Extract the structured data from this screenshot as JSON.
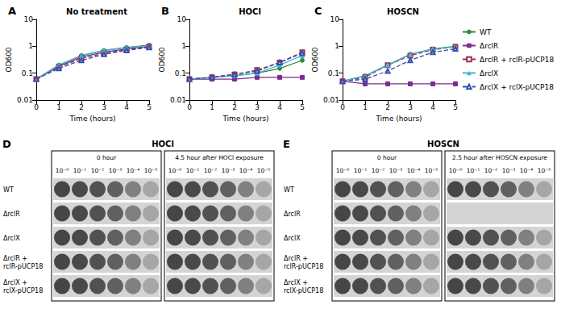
{
  "chart_data": [
    {
      "type": "line",
      "panel_label": "A",
      "title": "No treatment",
      "x_label": "Time (hours)",
      "y_label": "OD600",
      "x": [
        0,
        1,
        2,
        3,
        4,
        5
      ],
      "xlim": [
        0,
        5
      ],
      "xticks": [
        0,
        1,
        2,
        3,
        4,
        5
      ],
      "ylim": [
        0.01,
        10
      ],
      "yticks": [
        0.01,
        0.1,
        1,
        10
      ],
      "log": "y",
      "grid": false,
      "series": [
        {
          "name": "WT",
          "color": "#2e8b3a",
          "marker": "circle",
          "line_style": "solid",
          "values": [
            0.06,
            0.2,
            0.45,
            0.7,
            0.9,
            1.1
          ]
        },
        {
          "name": "ΔrclR",
          "color": "#7b2d8e",
          "marker": "square",
          "line_style": "solid",
          "values": [
            0.06,
            0.18,
            0.4,
            0.6,
            0.8,
            1.0
          ]
        },
        {
          "name": "ΔrclR + rclR-pUCP18",
          "color": "#9b2a55",
          "marker": "open_square",
          "line_style": "dashed",
          "values": [
            0.06,
            0.17,
            0.35,
            0.55,
            0.75,
            0.95
          ]
        },
        {
          "name": "ΔrclX",
          "color": "#3fb8d8",
          "marker": "triangle",
          "line_style": "solid",
          "values": [
            0.06,
            0.2,
            0.45,
            0.7,
            0.9,
            1.05
          ]
        },
        {
          "name": "ΔrclX + rclX-pUCP18",
          "color": "#2f4fb0",
          "marker": "open_triangle",
          "line_style": "dashed",
          "values": [
            0.06,
            0.15,
            0.3,
            0.5,
            0.7,
            0.9
          ]
        }
      ]
    },
    {
      "type": "line",
      "panel_label": "B",
      "title": "HOCl",
      "x_label": "Time (hours)",
      "y_label": "OD600",
      "x": [
        0,
        1,
        2,
        3,
        4,
        5
      ],
      "xlim": [
        0,
        5
      ],
      "xticks": [
        0,
        1,
        2,
        3,
        4,
        5
      ],
      "ylim": [
        0.01,
        10
      ],
      "yticks": [
        0.01,
        0.1,
        1,
        10
      ],
      "log": "y",
      "grid": false,
      "series": [
        {
          "name": "WT",
          "color": "#2e8b3a",
          "marker": "circle",
          "line_style": "solid",
          "values": [
            0.06,
            0.07,
            0.08,
            0.1,
            0.15,
            0.3
          ]
        },
        {
          "name": "ΔrclR",
          "color": "#7b2d8e",
          "marker": "square",
          "line_style": "solid",
          "values": [
            0.06,
            0.06,
            0.06,
            0.07,
            0.07,
            0.07
          ]
        },
        {
          "name": "ΔrclR + rclR-pUCP18",
          "color": "#9b2a55",
          "marker": "open_square",
          "line_style": "dashed",
          "values": [
            0.06,
            0.07,
            0.09,
            0.13,
            0.25,
            0.6
          ]
        },
        {
          "name": "ΔrclX",
          "color": "#3fb8d8",
          "marker": "triangle",
          "line_style": "solid",
          "values": [
            0.06,
            0.07,
            0.08,
            0.1,
            0.2,
            0.45
          ]
        },
        {
          "name": "ΔrclX + rclX-pUCP18",
          "color": "#2f4fb0",
          "marker": "open_triangle",
          "line_style": "dashed",
          "values": [
            0.06,
            0.07,
            0.09,
            0.12,
            0.25,
            0.55
          ]
        }
      ]
    },
    {
      "type": "line",
      "panel_label": "C",
      "title": "HOSCN",
      "x_label": "Time (hours)",
      "y_label": "OD600",
      "x": [
        0,
        1,
        2,
        3,
        4,
        5
      ],
      "xlim": [
        0,
        5
      ],
      "xticks": [
        0,
        1,
        2,
        3,
        4,
        5
      ],
      "ylim": [
        0.01,
        10
      ],
      "yticks": [
        0.01,
        0.1,
        1,
        10
      ],
      "log": "y",
      "grid": false,
      "legend": "right",
      "series": [
        {
          "name": "WT",
          "color": "#2e8b3a",
          "marker": "circle",
          "line_style": "solid",
          "values": [
            0.05,
            0.08,
            0.2,
            0.5,
            0.8,
            1.0
          ]
        },
        {
          "name": "ΔrclR",
          "color": "#7b2d8e",
          "marker": "square",
          "line_style": "solid",
          "values": [
            0.05,
            0.04,
            0.04,
            0.04,
            0.04,
            0.04
          ]
        },
        {
          "name": "ΔrclR + rclR-pUCP18",
          "color": "#9b2a55",
          "marker": "open_square",
          "line_style": "dashed",
          "values": [
            0.05,
            0.07,
            0.2,
            0.45,
            0.75,
            0.95
          ]
        },
        {
          "name": "ΔrclX",
          "color": "#3fb8d8",
          "marker": "triangle",
          "line_style": "solid",
          "values": [
            0.05,
            0.08,
            0.2,
            0.5,
            0.8,
            0.95
          ]
        },
        {
          "name": "ΔrclX + rclX-pUCP18",
          "color": "#2f4fb0",
          "marker": "open_triangle",
          "line_style": "dashed",
          "values": [
            0.05,
            0.06,
            0.12,
            0.3,
            0.6,
            0.8
          ]
        }
      ]
    }
  ],
  "spot_assays": [
    {
      "panel_label": "D",
      "title": "HOCl",
      "column_labels": [
        "10⁻⁰",
        "10⁻¹",
        "10⁻²",
        "10⁻³",
        "10⁻⁴",
        "10⁻⁵"
      ],
      "row_labels": [
        "WT",
        "ΔrclR",
        "ΔrclX",
        "ΔrclR + rclR-pUCP18",
        "ΔrclX + rclX-pUCP18"
      ],
      "blocks": [
        {
          "title": "0 hour",
          "visible_spots": [
            6,
            6,
            6,
            6,
            6
          ]
        },
        {
          "title": "4.5 hour after HOCl exposure",
          "visible_spots": [
            6,
            6,
            6,
            6,
            6
          ]
        }
      ]
    },
    {
      "panel_label": "E",
      "title": "HOSCN",
      "column_labels": [
        "10⁻⁰",
        "10⁻¹",
        "10⁻²",
        "10⁻³",
        "10⁻⁴",
        "10⁻⁵"
      ],
      "row_labels": [
        "WT",
        "ΔrclR",
        "ΔrclX",
        "ΔrclR + rclR-pUCP18",
        "ΔrclX + rclX-pUCP18"
      ],
      "blocks": [
        {
          "title": "0 hour",
          "visible_spots": [
            6,
            6,
            6,
            6,
            6
          ]
        },
        {
          "title": "2.5 hour after HOSCN exposure",
          "visible_spots": [
            6,
            0,
            6,
            6,
            6
          ]
        }
      ]
    }
  ]
}
